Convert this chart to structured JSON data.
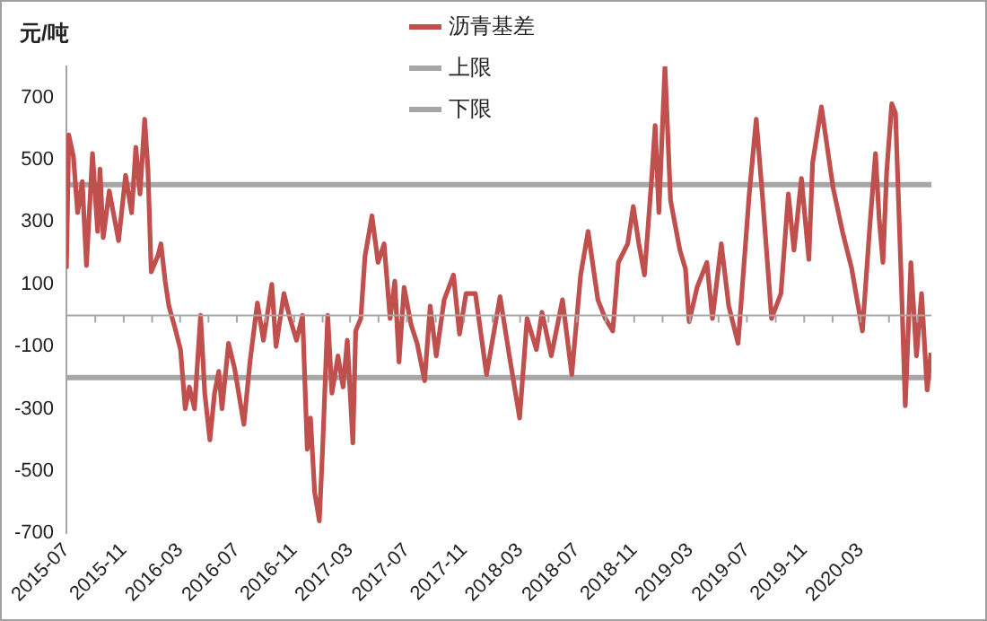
{
  "chart_data": {
    "type": "line",
    "ylabel": "元/吨",
    "x": [
      "2015-07-01",
      "2015-07-06",
      "2015-07-16",
      "2015-07-25",
      "2015-08-04",
      "2015-08-13",
      "2015-08-26",
      "2015-09-06",
      "2015-09-11",
      "2015-09-18",
      "2015-10-01",
      "2015-10-21",
      "2015-11-05",
      "2015-11-18",
      "2015-11-27",
      "2015-12-06",
      "2015-12-16",
      "2015-12-23",
      "2015-12-30",
      "2016-01-13",
      "2016-01-20",
      "2016-01-29",
      "2016-02-06",
      "2016-02-19",
      "2016-03-02",
      "2016-03-12",
      "2016-03-21",
      "2016-04-01",
      "2016-04-14",
      "2016-04-23",
      "2016-05-04",
      "2016-05-14",
      "2016-05-23",
      "2016-05-30",
      "2016-06-13",
      "2016-06-26",
      "2016-07-16",
      "2016-07-29",
      "2016-08-14",
      "2016-08-27",
      "2016-09-14",
      "2016-09-23",
      "2016-10-10",
      "2016-10-23",
      "2016-11-06",
      "2016-11-19",
      "2016-11-29",
      "2016-12-06",
      "2016-12-15",
      "2016-12-25",
      "2017-01-01",
      "2017-01-12",
      "2017-01-21",
      "2017-02-03",
      "2017-02-14",
      "2017-02-23",
      "2017-03-07",
      "2017-03-13",
      "2017-03-24",
      "2017-04-02",
      "2017-04-17",
      "2017-04-30",
      "2017-05-13",
      "2017-05-26",
      "2017-06-05",
      "2017-06-14",
      "2017-06-25",
      "2017-07-10",
      "2017-07-23",
      "2017-08-08",
      "2017-08-20",
      "2017-09-02",
      "2017-09-19",
      "2017-10-09",
      "2017-10-22",
      "2017-11-05",
      "2017-11-25",
      "2017-12-19",
      "2018-01-17",
      "2018-02-06",
      "2018-02-28",
      "2018-03-16",
      "2018-04-05",
      "2018-04-17",
      "2018-05-07",
      "2018-05-31",
      "2018-06-20",
      "2018-07-09",
      "2018-07-25",
      "2018-08-15",
      "2018-08-31",
      "2018-09-16",
      "2018-09-28",
      "2018-10-18",
      "2018-10-30",
      "2018-11-11",
      "2018-11-23",
      "2018-12-08",
      "2018-12-16",
      "2018-12-24",
      "2019-01-06",
      "2019-01-18",
      "2019-02-07",
      "2019-02-19",
      "2019-02-27",
      "2019-03-16",
      "2019-04-06",
      "2019-04-18",
      "2019-05-07",
      "2019-05-23",
      "2019-06-12",
      "2019-07-06",
      "2019-07-21",
      "2019-08-03",
      "2019-08-23",
      "2019-09-12",
      "2019-09-28",
      "2019-10-10",
      "2019-10-26",
      "2019-11-11",
      "2019-11-19",
      "2019-12-08",
      "2020-01-02",
      "2020-01-22",
      "2020-02-11",
      "2020-03-05",
      "2020-03-20",
      "2020-04-02",
      "2020-04-10",
      "2020-04-18",
      "2020-04-26",
      "2020-05-07",
      "2020-05-15",
      "2020-05-27",
      "2020-06-05",
      "2020-06-17",
      "2020-06-29",
      "2020-07-10",
      "2020-07-22",
      "2020-07-30"
    ],
    "series": [
      {
        "name": "沥青基差",
        "color": "#c0504d",
        "values": [
          150,
          580,
          510,
          330,
          430,
          160,
          520,
          270,
          470,
          250,
          400,
          240,
          450,
          330,
          540,
          390,
          630,
          470,
          140,
          190,
          230,
          110,
          30,
          -40,
          -110,
          -300,
          -230,
          -300,
          0,
          -250,
          -400,
          -250,
          -180,
          -300,
          -90,
          -170,
          -350,
          -150,
          40,
          -80,
          100,
          -100,
          70,
          -10,
          -80,
          0,
          -430,
          -330,
          -570,
          -660,
          -430,
          0,
          -250,
          -130,
          -230,
          -80,
          -410,
          -50,
          -10,
          190,
          320,
          170,
          230,
          -10,
          110,
          -150,
          90,
          -30,
          -90,
          -210,
          30,
          -130,
          50,
          130,
          -60,
          70,
          70,
          -190,
          60,
          -130,
          -330,
          -10,
          -110,
          10,
          -130,
          50,
          -190,
          130,
          270,
          50,
          -10,
          -50,
          170,
          230,
          350,
          230,
          130,
          430,
          610,
          330,
          800,
          370,
          210,
          150,
          -20,
          90,
          170,
          -10,
          230,
          30,
          -90,
          390,
          630,
          390,
          -10,
          70,
          390,
          210,
          440,
          180,
          490,
          670,
          410,
          270,
          150,
          -50,
          270,
          520,
          310,
          170,
          460,
          680,
          650,
          130,
          -290,
          170,
          -130,
          70,
          -240,
          -120
        ]
      }
    ],
    "xlim": [
      "2015-07-01",
      "2020-07-31"
    ],
    "xticks": [
      {
        "value": "2015-07",
        "label": "2015-07"
      },
      {
        "value": "2015-09",
        "label": null
      },
      {
        "value": "2015-11",
        "label": "2015-11"
      },
      {
        "value": "2016-01",
        "label": null
      },
      {
        "value": "2016-03",
        "label": "2016-03"
      },
      {
        "value": "2016-05",
        "label": null
      },
      {
        "value": "2016-07",
        "label": "2016-07"
      },
      {
        "value": "2016-09",
        "label": null
      },
      {
        "value": "2016-11",
        "label": "2016-11"
      },
      {
        "value": "2017-01",
        "label": null
      },
      {
        "value": "2017-03",
        "label": "2017-03"
      },
      {
        "value": "2017-05",
        "label": null
      },
      {
        "value": "2017-07",
        "label": "2017-07"
      },
      {
        "value": "2017-09",
        "label": null
      },
      {
        "value": "2017-11",
        "label": "2017-11"
      },
      {
        "value": "2018-01",
        "label": null
      },
      {
        "value": "2018-03",
        "label": "2018-03"
      },
      {
        "value": "2018-05",
        "label": null
      },
      {
        "value": "2018-07",
        "label": "2018-07"
      },
      {
        "value": "2018-09",
        "label": null
      },
      {
        "value": "2018-11",
        "label": "2018-11"
      },
      {
        "value": "2019-01",
        "label": null
      },
      {
        "value": "2019-03",
        "label": "2019-03"
      },
      {
        "value": "2019-05",
        "label": null
      },
      {
        "value": "2019-07",
        "label": "2019-07"
      },
      {
        "value": "2019-09",
        "label": null
      },
      {
        "value": "2019-11",
        "label": "2019-11"
      },
      {
        "value": "2020-01",
        "label": null
      },
      {
        "value": "2020-03",
        "label": "2020-03"
      },
      {
        "value": "2020-05",
        "label": null
      },
      {
        "value": "2020-07",
        "label": null
      }
    ],
    "ylim": [
      -700,
      800
    ],
    "yticks": [
      -700,
      -500,
      -300,
      -100,
      100,
      300,
      500,
      700
    ],
    "ref_lines": [
      {
        "axis": "y",
        "value": 420,
        "label": "上限",
        "color": "#a6a6a6"
      },
      {
        "axis": "y",
        "value": -200,
        "label": "下限",
        "color": "#a6a6a6"
      }
    ],
    "grid": false,
    "legend": "top",
    "marker": "none",
    "line_style": "solid"
  }
}
